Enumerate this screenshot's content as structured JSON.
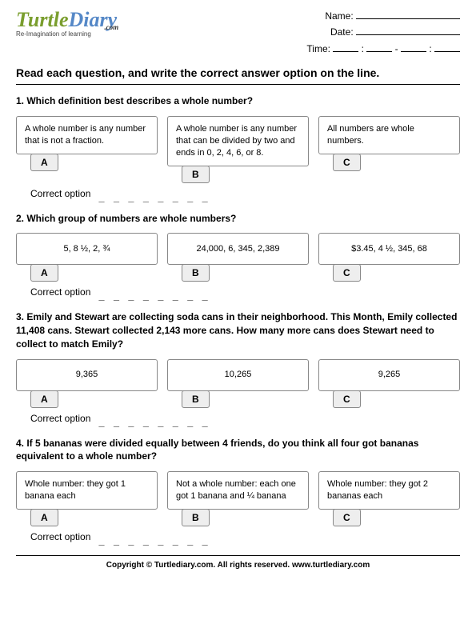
{
  "header": {
    "logo_turtle": "Turtle",
    "logo_diary": "Diary",
    "logo_dotcom": ".com",
    "tagline": "Re-Imagination of learning",
    "name_label": "Name:",
    "date_label": "Date:",
    "time_label": "Time:"
  },
  "instructions": "Read each question, and write the correct answer option on the line.",
  "correct_label": "Correct option",
  "dashes": "_ _ _ _ _ _ _ _",
  "questions": [
    {
      "text": "1. Which definition best describes a whole number?",
      "options": [
        "A whole number is any number that is not a fraction.",
        "A whole number is any number that can be divided by two and ends in 0, 2, 4, 6, or 8.",
        "All numbers are whole numbers."
      ]
    },
    {
      "text": "2. Which group of numbers are whole numbers?",
      "options": [
        "5, 8 ½, 2, ¾",
        "24,000, 6, 345, 2,389",
        "$3.45, 4 ½, 345, 68"
      ]
    },
    {
      "text": "3. Emily and Stewart are collecting soda cans in their neighborhood. This Month, Emily collected 11,408 cans. Stewart collected 2,143 more cans.  How many more cans does Stewart need to collect to match Emily?",
      "options": [
        "9,365",
        "10,265",
        "9,265"
      ]
    },
    {
      "text": "4. If 5 bananas were divided equally between 4 friends, do you think all four got bananas equivalent to a whole number?",
      "options": [
        "Whole number: they got 1 banana each",
        "Not a whole number: each one got 1 banana and ¼ banana",
        "Whole number: they got 2 bananas each"
      ]
    }
  ],
  "letters": [
    "A",
    "B",
    "C"
  ],
  "footer": "Copyright © Turtlediary.com. All rights reserved. www.turtlediary.com"
}
